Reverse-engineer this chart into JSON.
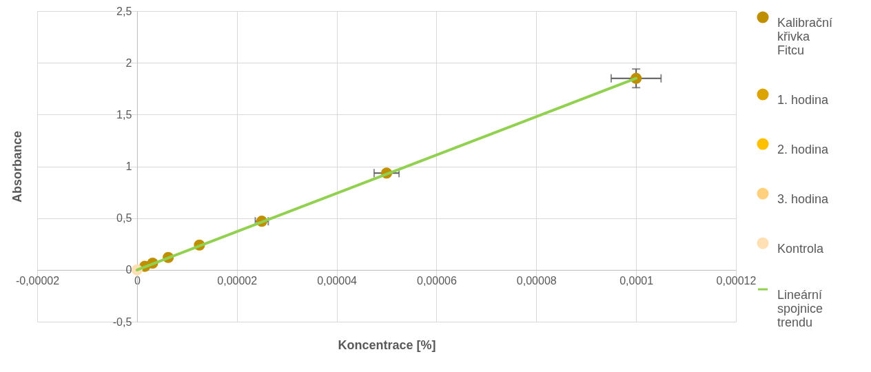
{
  "chart_data": {
    "type": "scatter",
    "xlabel": "Koncentrace [%]",
    "ylabel": "Absorbance",
    "xlim": [
      -2e-05,
      0.00012
    ],
    "xticks": [
      {
        "value": -2e-05,
        "label": "-0,00002"
      },
      0,
      {
        "value": 2e-05,
        "label": "0,00002"
      },
      {
        "value": 4e-05,
        "label": "0,00004"
      },
      {
        "value": 6e-05,
        "label": "0,00006"
      },
      {
        "value": 8e-05,
        "label": "0,00008"
      },
      {
        "value": 0.0001,
        "label": "0,0001"
      },
      {
        "value": 0.00012,
        "label": "0,00012"
      }
    ],
    "ylim": [
      -0.5,
      2.5
    ],
    "yticks": [
      {
        "value": -0.5,
        "label": "-0,5"
      },
      0,
      {
        "value": 0.5,
        "label": "0,5"
      },
      1,
      {
        "value": 1.5,
        "label": "1,5"
      },
      2,
      {
        "value": 2.5,
        "label": "2,5"
      }
    ],
    "grid": true,
    "legend": "right",
    "marker": "circle",
    "series": [
      {
        "name": "Kalibrační křivka Fitcu",
        "color": "#bf8f00",
        "x": [
          1.5625e-06,
          3.125e-06,
          6.25e-06,
          1.25e-05,
          2.5e-05,
          5e-05,
          0.0001
        ],
        "values": [
          0.035,
          0.065,
          0.12,
          0.24,
          0.47,
          0.935,
          1.85
        ],
        "errors": [
          null,
          null,
          null,
          null,
          null,
          null,
          0.09
        ],
        "xerrors": [
          null,
          null,
          null,
          null,
          1.3e-06,
          2.5e-06,
          5e-06
        ]
      },
      {
        "name": "1. hodina",
        "color": "#dba400"
      },
      {
        "name": "2. hodina",
        "color": "#ffc000"
      },
      {
        "name": "3. hodina",
        "color": "#ffd17f"
      },
      {
        "name": "Kontrola",
        "color": "#ffe0b5",
        "x": [
          0
        ],
        "values": [
          0
        ]
      },
      {
        "name": "Lineární spojnice trendu",
        "type": "line",
        "marker": "none",
        "color": "#92d050",
        "x": [
          0,
          0.0001
        ],
        "values": [
          0,
          1.85
        ]
      }
    ]
  }
}
